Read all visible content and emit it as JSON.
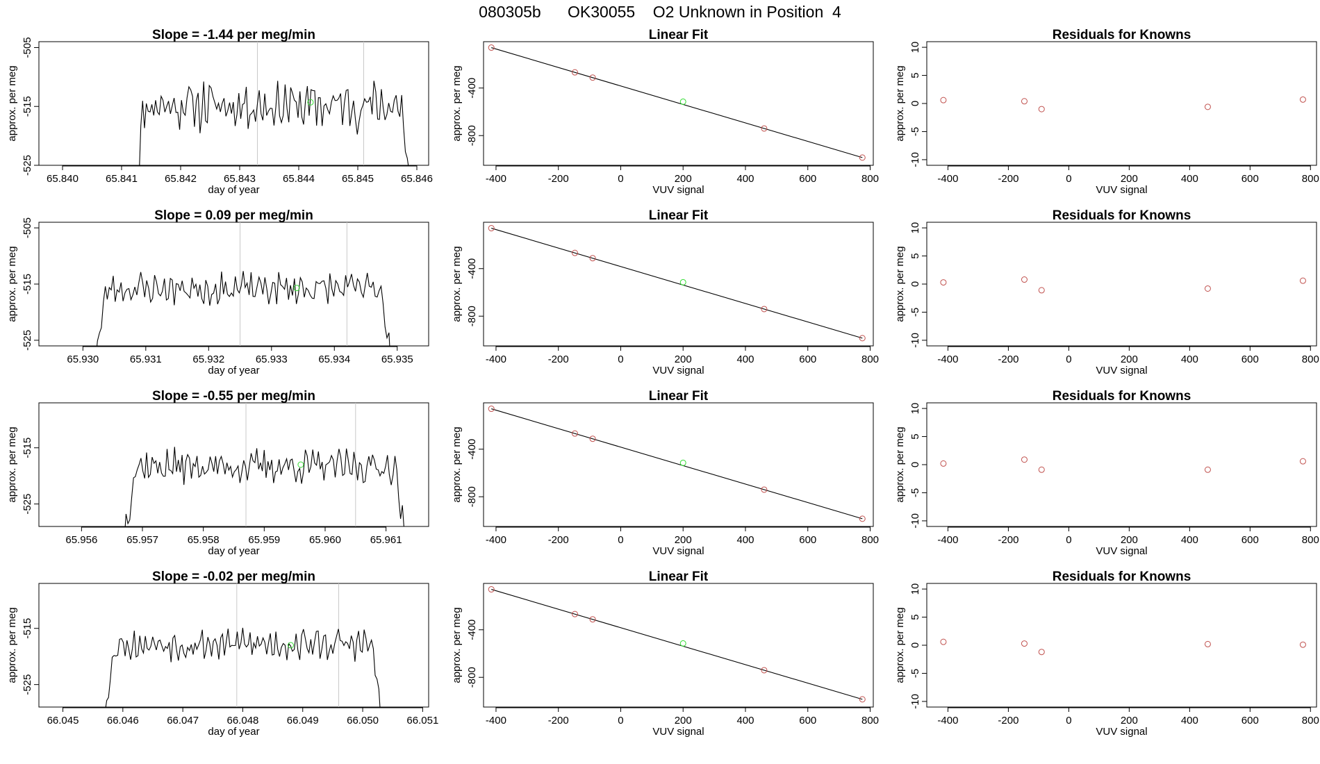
{
  "figure": {
    "title": "080305b      OK30055    O2 Unknown in Position  4",
    "colors": {
      "series": "#000000",
      "known_points": "#c0504d",
      "unknown_point": "#33dd33",
      "vline": "#c8c8c8"
    }
  },
  "chart_data": [
    {
      "type": "line",
      "row": 0,
      "col": 0,
      "title": "Slope =  -1.44  per meg/min",
      "xlabel": "day of year",
      "ylabel": "approx. per meg",
      "xlim": [
        65.8396,
        65.8462
      ],
      "ylim": [
        -525,
        -504
      ],
      "xticks": [
        65.84,
        65.841,
        65.842,
        65.843,
        65.844,
        65.845,
        65.846
      ],
      "xtick_labels": [
        "65.840",
        "65.841",
        "65.842",
        "65.843",
        "65.844",
        "65.845",
        "65.846"
      ],
      "yticks": [
        -505,
        -515,
        -525
      ],
      "ytick_labels": [
        "-505",
        "-515",
        "-525"
      ],
      "signal_start": 65.8412,
      "signal_end": 65.8459,
      "signal_center": -514.8,
      "signal_amp": 3.2,
      "seed": 11,
      "vlines": [
        65.8433,
        65.8451
      ],
      "unknown_point": {
        "x": 65.8442,
        "y": -514.3
      }
    },
    {
      "type": "scatter",
      "row": 0,
      "col": 1,
      "title": "Linear Fit",
      "xlabel": "VUV signal",
      "ylabel": "approx. per meg",
      "xlim": [
        -440,
        810
      ],
      "ylim": [
        -1050,
        -10
      ],
      "xticks": [
        -400,
        -200,
        0,
        200,
        400,
        600,
        800
      ],
      "xtick_labels": [
        "-400",
        "-200",
        "0",
        "200",
        "400",
        "600",
        "800"
      ],
      "yticks": [
        -400,
        -800
      ],
      "ytick_labels": [
        "-400",
        "-800"
      ],
      "fit_line": {
        "x": [
          -415,
          775
        ],
        "y": [
          -60,
          -985
        ]
      },
      "known_points": {
        "x": [
          -415,
          -147,
          -90,
          460,
          775
        ],
        "y": [
          -60,
          -268,
          -312,
          -740,
          -985
        ]
      },
      "unknown_point": {
        "x": 200,
        "y": -515
      }
    },
    {
      "type": "scatter",
      "row": 0,
      "col": 2,
      "title": "Residuals for Knowns",
      "xlabel": "VUV signal",
      "ylabel": "approx. per meg",
      "xlim": [
        -470,
        820
      ],
      "ylim": [
        -11,
        11
      ],
      "xticks": [
        -400,
        -200,
        0,
        200,
        400,
        600,
        800
      ],
      "xtick_labels": [
        "-400",
        "-200",
        "0",
        "200",
        "400",
        "600",
        "800"
      ],
      "yticks": [
        10,
        5,
        0,
        -5,
        -10
      ],
      "ytick_labels": [
        "10",
        "5",
        "0",
        "-5",
        "-10"
      ],
      "known_points": {
        "x": [
          -415,
          -147,
          -90,
          460,
          775
        ],
        "y": [
          0.6,
          0.4,
          -1.0,
          -0.6,
          0.7
        ]
      }
    },
    {
      "type": "line",
      "row": 1,
      "col": 0,
      "title": "Slope =  0.09  per meg/min",
      "xlabel": "day of year",
      "ylabel": "approx. per meg",
      "xlim": [
        65.9293,
        65.9355
      ],
      "ylim": [
        -526,
        -504
      ],
      "xticks": [
        65.93,
        65.931,
        65.932,
        65.933,
        65.934,
        65.935
      ],
      "xtick_labels": [
        "65.930",
        "65.931",
        "65.932",
        "65.933",
        "65.934",
        "65.935"
      ],
      "yticks": [
        -505,
        -515,
        -525
      ],
      "ytick_labels": [
        "-505",
        "-515",
        "-525"
      ],
      "signal_start": 65.9302,
      "signal_end": 65.9349,
      "signal_center": -515.8,
      "signal_amp": 2.2,
      "seed": 23,
      "vlines": [
        65.9325,
        65.9342
      ],
      "unknown_point": {
        "x": 65.9334,
        "y": -515.7
      }
    },
    {
      "type": "scatter",
      "row": 1,
      "col": 1,
      "title": "Linear Fit",
      "xlabel": "VUV signal",
      "ylabel": "approx. per meg",
      "xlim": [
        -440,
        810
      ],
      "ylim": [
        -1050,
        -10
      ],
      "xticks": [
        -400,
        -200,
        0,
        200,
        400,
        600,
        800
      ],
      "xtick_labels": [
        "-400",
        "-200",
        "0",
        "200",
        "400",
        "600",
        "800"
      ],
      "yticks": [
        -400,
        -800
      ],
      "ytick_labels": [
        "-400",
        "-800"
      ],
      "fit_line": {
        "x": [
          -415,
          775
        ],
        "y": [
          -60,
          -985
        ]
      },
      "known_points": {
        "x": [
          -415,
          -147,
          -90,
          460,
          775
        ],
        "y": [
          -60,
          -268,
          -312,
          -740,
          -985
        ]
      },
      "unknown_point": {
        "x": 200,
        "y": -515
      }
    },
    {
      "type": "scatter",
      "row": 1,
      "col": 2,
      "title": "Residuals for Knowns",
      "xlabel": "VUV signal",
      "ylabel": "approx. per meg",
      "xlim": [
        -470,
        820
      ],
      "ylim": [
        -11,
        11
      ],
      "xticks": [
        -400,
        -200,
        0,
        200,
        400,
        600,
        800
      ],
      "xtick_labels": [
        "-400",
        "-200",
        "0",
        "200",
        "400",
        "600",
        "800"
      ],
      "yticks": [
        10,
        5,
        0,
        -5,
        -10
      ],
      "ytick_labels": [
        "10",
        "5",
        "0",
        "-5",
        "-10"
      ],
      "known_points": {
        "x": [
          -415,
          -147,
          -90,
          460,
          775
        ],
        "y": [
          0.3,
          0.8,
          -1.1,
          -0.8,
          0.6
        ]
      }
    },
    {
      "type": "line",
      "row": 2,
      "col": 0,
      "title": "Slope =  -0.55  per meg/min",
      "xlabel": "day of year",
      "ylabel": "approx. per meg",
      "xlim": [
        65.9553,
        65.9617
      ],
      "ylim": [
        -529,
        -507
      ],
      "xticks": [
        65.956,
        65.957,
        65.958,
        65.959,
        65.96,
        65.961
      ],
      "xtick_labels": [
        "65.956",
        "65.957",
        "65.958",
        "65.959",
        "65.960",
        "65.961"
      ],
      "yticks": [
        -515,
        -525
      ],
      "ytick_labels": [
        "-515",
        "-525"
      ],
      "signal_start": 65.9567,
      "signal_end": 65.9613,
      "signal_center": -518.3,
      "signal_amp": 2.3,
      "seed": 37,
      "vlines": [
        65.9587,
        65.9605
      ],
      "unknown_point": {
        "x": 65.9596,
        "y": -518.0
      }
    },
    {
      "type": "scatter",
      "row": 2,
      "col": 1,
      "title": "Linear Fit",
      "xlabel": "VUV signal",
      "ylabel": "approx. per meg",
      "xlim": [
        -440,
        810
      ],
      "ylim": [
        -1050,
        -10
      ],
      "xticks": [
        -400,
        -200,
        0,
        200,
        400,
        600,
        800
      ],
      "xtick_labels": [
        "-400",
        "-200",
        "0",
        "200",
        "400",
        "600",
        "800"
      ],
      "yticks": [
        -400,
        -800
      ],
      "ytick_labels": [
        "-400",
        "-800"
      ],
      "fit_line": {
        "x": [
          -415,
          775
        ],
        "y": [
          -60,
          -985
        ]
      },
      "known_points": {
        "x": [
          -415,
          -147,
          -90,
          460,
          775
        ],
        "y": [
          -60,
          -268,
          -312,
          -740,
          -985
        ]
      },
      "unknown_point": {
        "x": 200,
        "y": -515
      }
    },
    {
      "type": "scatter",
      "row": 2,
      "col": 2,
      "title": "Residuals for Knowns",
      "xlabel": "VUV signal",
      "ylabel": "approx. per meg",
      "xlim": [
        -470,
        820
      ],
      "ylim": [
        -11,
        11
      ],
      "xticks": [
        -400,
        -200,
        0,
        200,
        400,
        600,
        800
      ],
      "xtick_labels": [
        "-400",
        "-200",
        "0",
        "200",
        "400",
        "600",
        "800"
      ],
      "yticks": [
        10,
        5,
        0,
        -5,
        -10
      ],
      "ytick_labels": [
        "10",
        "5",
        "0",
        "-5",
        "-10"
      ],
      "known_points": {
        "x": [
          -415,
          -147,
          -90,
          460,
          775
        ],
        "y": [
          0.2,
          0.9,
          -0.9,
          -0.9,
          0.6
        ]
      }
    },
    {
      "type": "line",
      "row": 3,
      "col": 0,
      "title": "Slope =  -0.02  per meg/min",
      "xlabel": "day of year",
      "ylabel": "approx. per meg",
      "xlim": [
        66.0446,
        66.0511
      ],
      "ylim": [
        -529,
        -507
      ],
      "xticks": [
        66.045,
        66.046,
        66.047,
        66.048,
        66.049,
        66.05,
        66.051
      ],
      "xtick_labels": [
        "66.045",
        "66.046",
        "66.047",
        "66.048",
        "66.049",
        "66.050",
        "66.051"
      ],
      "yticks": [
        -515,
        -525
      ],
      "ytick_labels": [
        "-515",
        "-525"
      ],
      "signal_start": 66.0457,
      "signal_end": 66.0503,
      "signal_center": -517.8,
      "signal_amp": 2.1,
      "seed": 53,
      "vlines": [
        66.0479,
        66.0496
      ],
      "unknown_point": {
        "x": 66.0488,
        "y": -518.0
      }
    },
    {
      "type": "scatter",
      "row": 3,
      "col": 1,
      "title": "Linear Fit",
      "xlabel": "VUV signal",
      "ylabel": "approx. per meg",
      "xlim": [
        -440,
        810
      ],
      "ylim": [
        -1050,
        -10
      ],
      "xticks": [
        -400,
        -200,
        0,
        200,
        400,
        600,
        800
      ],
      "xtick_labels": [
        "-400",
        "-200",
        "0",
        "200",
        "400",
        "600",
        "800"
      ],
      "yticks": [
        -400,
        -800
      ],
      "ytick_labels": [
        "-400",
        "-800"
      ],
      "fit_line": {
        "x": [
          -415,
          775
        ],
        "y": [
          -60,
          -985
        ]
      },
      "known_points": {
        "x": [
          -415,
          -147,
          -90,
          460,
          775
        ],
        "y": [
          -60,
          -268,
          -312,
          -740,
          -985
        ]
      },
      "unknown_point": {
        "x": 200,
        "y": -515
      }
    },
    {
      "type": "scatter",
      "row": 3,
      "col": 2,
      "title": "Residuals for Knowns",
      "xlabel": "VUV signal",
      "ylabel": "approx. per meg",
      "xlim": [
        -470,
        820
      ],
      "ylim": [
        -11,
        11
      ],
      "xticks": [
        -400,
        -200,
        0,
        200,
        400,
        600,
        800
      ],
      "xtick_labels": [
        "-400",
        "-200",
        "0",
        "200",
        "400",
        "600",
        "800"
      ],
      "yticks": [
        10,
        5,
        0,
        -5,
        -10
      ],
      "ytick_labels": [
        "10",
        "5",
        "0",
        "-5",
        "-10"
      ],
      "known_points": {
        "x": [
          -415,
          -147,
          -90,
          460,
          775
        ],
        "y": [
          0.6,
          0.3,
          -1.2,
          0.2,
          0.1
        ]
      }
    }
  ]
}
